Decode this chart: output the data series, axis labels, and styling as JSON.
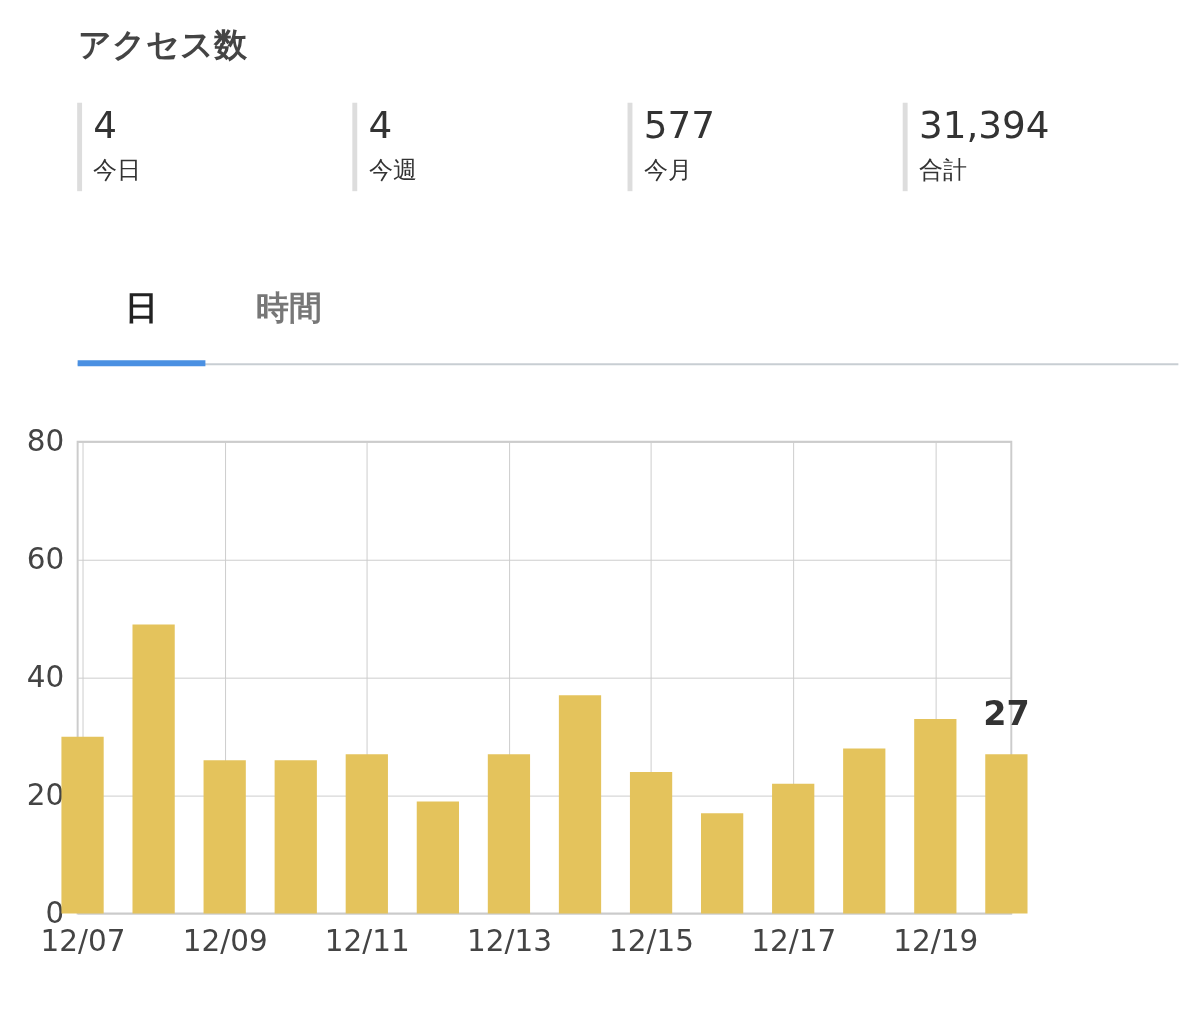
{
  "chart_data": [
    {
      "type": "other",
      "title": "アクセス数",
      "categories": [
        "今日",
        "今週",
        "今月",
        "合計"
      ],
      "values": [
        4,
        4,
        577,
        31394
      ],
      "value_labels": [
        "4",
        "4",
        "577",
        "31,394"
      ],
      "annotations": [
        "日",
        "時間"
      ]
    },
    {
      "type": "bar",
      "categories": [
        "12/07",
        null,
        "12/09",
        null,
        "12/11",
        null,
        "12/13",
        null,
        "12/15",
        null,
        "12/17",
        null,
        "12/19",
        null
      ],
      "values": [
        30,
        49,
        26,
        26,
        27,
        19,
        27,
        37,
        24,
        17,
        22,
        28,
        33,
        27
      ],
      "color": "#e4c35c",
      "value_labels": [
        null,
        null,
        null,
        null,
        null,
        null,
        null,
        null,
        null,
        null,
        null,
        null,
        null,
        "27"
      ],
      "ylim": [
        0,
        80
      ],
      "yticks": [
        0,
        20,
        40,
        60,
        80
      ],
      "grid": true
    }
  ]
}
